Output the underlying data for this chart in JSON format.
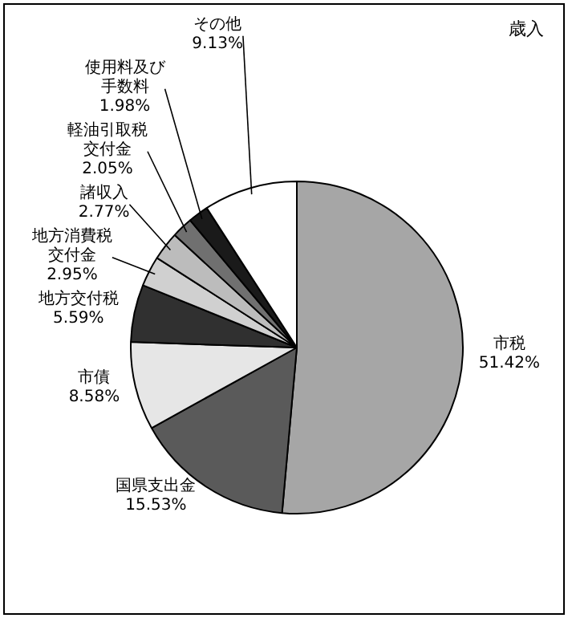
{
  "chart_data": {
    "type": "pie",
    "title": "歳入",
    "categories": [
      "市税",
      "国県支出金",
      "市債",
      "地方交付税",
      "地方消費税交付金",
      "諸収入",
      "軽油引取税交付金",
      "使用料及び手数料",
      "その他"
    ],
    "values": [
      51.42,
      15.53,
      8.58,
      5.59,
      2.95,
      2.77,
      2.05,
      1.98,
      9.13
    ],
    "value_labels": [
      "51.42%",
      "15.53%",
      "8.58%",
      "5.59%",
      "2.95%",
      "2.77%",
      "2.05%",
      "1.98%",
      "9.13%"
    ],
    "colors": [
      "#a6a6a6",
      "#5a5a5a",
      "#e6e6e6",
      "#303030",
      "#d0d0d0",
      "#bcbcbc",
      "#707070",
      "#1a1a1a",
      "#ffffff"
    ],
    "legend": false
  }
}
